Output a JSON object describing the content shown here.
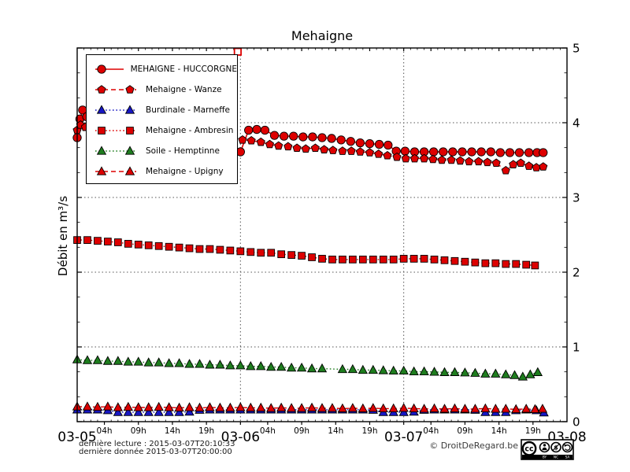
{
  "chart_data": {
    "type": "line",
    "title": "Mehaigne",
    "ylabel": "Débit en m³/s",
    "ylim": [
      0,
      5
    ],
    "xlim_hours": [
      0,
      72
    ],
    "grid": {
      "h_values": [
        1,
        2,
        3,
        4
      ],
      "v_hours": [
        24,
        48
      ]
    },
    "x_day_labels": [
      {
        "t": 0,
        "label": "03-05"
      },
      {
        "t": 24,
        "label": "03-06"
      },
      {
        "t": 48,
        "label": "03-07"
      },
      {
        "t": 72,
        "label": "03-08"
      }
    ],
    "x_hour_labels": [
      {
        "t": 4,
        "label": "04h"
      },
      {
        "t": 9,
        "label": "09h"
      },
      {
        "t": 14,
        "label": "14h"
      },
      {
        "t": 19,
        "label": "19h"
      },
      {
        "t": 28,
        "label": "04h"
      },
      {
        "t": 33,
        "label": "09h"
      },
      {
        "t": 38,
        "label": "14h"
      },
      {
        "t": 43,
        "label": "19h"
      },
      {
        "t": 52,
        "label": "04h"
      },
      {
        "t": 57,
        "label": "09h"
      },
      {
        "t": 62,
        "label": "14h"
      },
      {
        "t": 67,
        "label": "19h"
      }
    ],
    "y_major_ticks": [
      0,
      1,
      2,
      3,
      4,
      5
    ],
    "legend_position": "upper-left",
    "outlier": {
      "t": 23.6,
      "v": 4.95,
      "marker": "square-open",
      "color": "#dd0000"
    },
    "series": [
      {
        "name": "MEHAIGNE - HUCCORGNE",
        "color": "#dd0000",
        "marker": "circle",
        "line": "solid",
        "points": [
          [
            0,
            3.8
          ],
          [
            0.4,
            4.05
          ],
          [
            0.8,
            4.17
          ],
          [
            1.4,
            4.08
          ],
          [
            3,
            4.01
          ],
          [
            4.5,
            3.96
          ],
          [
            6,
            3.92
          ],
          [
            7.5,
            3.89
          ],
          [
            9,
            3.86
          ],
          [
            10.5,
            3.83
          ],
          [
            12,
            3.8
          ],
          [
            13.5,
            3.77
          ],
          [
            15,
            3.74
          ],
          [
            16.5,
            3.71
          ],
          [
            18,
            3.68
          ],
          [
            19.5,
            3.66
          ],
          [
            21,
            3.64
          ],
          [
            22.5,
            3.62
          ],
          [
            24,
            3.61
          ],
          [
            25.2,
            3.9
          ],
          [
            26.4,
            3.91
          ],
          [
            27.6,
            3.9
          ],
          [
            29,
            3.83
          ],
          [
            30.4,
            3.82
          ],
          [
            31.8,
            3.82
          ],
          [
            33.2,
            3.81
          ],
          [
            34.6,
            3.81
          ],
          [
            36,
            3.8
          ],
          [
            37.4,
            3.79
          ],
          [
            38.8,
            3.77
          ],
          [
            40.2,
            3.75
          ],
          [
            41.6,
            3.73
          ],
          [
            43,
            3.72
          ],
          [
            44.4,
            3.71
          ],
          [
            45.7,
            3.7
          ],
          [
            46.9,
            3.62
          ],
          [
            48.2,
            3.62
          ],
          [
            49.6,
            3.61
          ],
          [
            51,
            3.61
          ],
          [
            52.4,
            3.61
          ],
          [
            53.8,
            3.61
          ],
          [
            55.2,
            3.61
          ],
          [
            56.6,
            3.61
          ],
          [
            58,
            3.61
          ],
          [
            59.4,
            3.61
          ],
          [
            60.8,
            3.61
          ],
          [
            62.2,
            3.6
          ],
          [
            63.6,
            3.6
          ],
          [
            65,
            3.6
          ],
          [
            66.4,
            3.6
          ],
          [
            67.6,
            3.6
          ],
          [
            68.5,
            3.6
          ]
        ]
      },
      {
        "name": "Mehaigne - Wanze",
        "color": "#dd0000",
        "marker": "pentagon",
        "line": "dashed",
        "points": [
          [
            0,
            3.9
          ],
          [
            0.5,
            3.97
          ],
          [
            1.2,
            3.94
          ],
          [
            3,
            3.92
          ],
          [
            5,
            3.9
          ],
          [
            7,
            3.88
          ],
          [
            9,
            3.86
          ],
          [
            11,
            3.85
          ],
          [
            13,
            3.83
          ],
          [
            15,
            3.82
          ],
          [
            17,
            3.81
          ],
          [
            19,
            3.8
          ],
          [
            21,
            3.79
          ],
          [
            23,
            3.78
          ],
          [
            24.3,
            3.77
          ],
          [
            25.6,
            3.76
          ],
          [
            27,
            3.74
          ],
          [
            28.3,
            3.71
          ],
          [
            29.6,
            3.69
          ],
          [
            31,
            3.68
          ],
          [
            32.3,
            3.66
          ],
          [
            33.6,
            3.65
          ],
          [
            35,
            3.66
          ],
          [
            36.3,
            3.64
          ],
          [
            37.6,
            3.63
          ],
          [
            39,
            3.62
          ],
          [
            40.3,
            3.62
          ],
          [
            41.6,
            3.61
          ],
          [
            43,
            3.6
          ],
          [
            44.3,
            3.58
          ],
          [
            45.6,
            3.56
          ],
          [
            47,
            3.54
          ],
          [
            48.3,
            3.52
          ],
          [
            49.6,
            3.52
          ],
          [
            51,
            3.52
          ],
          [
            52.3,
            3.51
          ],
          [
            53.6,
            3.5
          ],
          [
            55,
            3.5
          ],
          [
            56.3,
            3.49
          ],
          [
            57.6,
            3.48
          ],
          [
            59,
            3.48
          ],
          [
            60.3,
            3.47
          ],
          [
            61.6,
            3.46
          ],
          [
            63,
            3.36
          ],
          [
            64.1,
            3.44
          ],
          [
            65.2,
            3.46
          ],
          [
            66.4,
            3.42
          ],
          [
            67.5,
            3.4
          ],
          [
            68.5,
            3.41
          ]
        ]
      },
      {
        "name": "Burdinale - Marneffe",
        "color": "#1717c4",
        "marker": "triangle",
        "line": "dotted",
        "points": [
          [
            0,
            0.16
          ],
          [
            1.5,
            0.16
          ],
          [
            3,
            0.16
          ],
          [
            4.5,
            0.15
          ],
          [
            6,
            0.125
          ],
          [
            7.5,
            0.125
          ],
          [
            9,
            0.125
          ],
          [
            10.5,
            0.125
          ],
          [
            12,
            0.125
          ],
          [
            13.5,
            0.125
          ],
          [
            15,
            0.125
          ],
          [
            16.5,
            0.13
          ],
          [
            18,
            0.155
          ],
          [
            19.5,
            0.16
          ],
          [
            21,
            0.16
          ],
          [
            22.5,
            0.16
          ],
          [
            24,
            0.16
          ],
          [
            25.5,
            0.16
          ],
          [
            27,
            0.16
          ],
          [
            28.5,
            0.16
          ],
          [
            30,
            0.16
          ],
          [
            31.5,
            0.16
          ],
          [
            33,
            0.16
          ],
          [
            34.5,
            0.16
          ],
          [
            36,
            0.16
          ],
          [
            37.5,
            0.16
          ],
          [
            39,
            0.16
          ],
          [
            40.5,
            0.16
          ],
          [
            42,
            0.16
          ],
          [
            43.5,
            0.155
          ],
          [
            45,
            0.125
          ],
          [
            46.5,
            0.125
          ],
          [
            48,
            0.125
          ],
          [
            49.5,
            0.13
          ],
          [
            51,
            0.155
          ],
          [
            52.5,
            0.16
          ],
          [
            54,
            0.16
          ],
          [
            55.5,
            0.16
          ],
          [
            57,
            0.16
          ],
          [
            58.5,
            0.155
          ],
          [
            60,
            0.125
          ],
          [
            61.5,
            0.125
          ],
          [
            63,
            0.125
          ],
          [
            64.5,
            0.15
          ],
          [
            66,
            0.16
          ],
          [
            67.5,
            0.15
          ],
          [
            68.6,
            0.12
          ]
        ]
      },
      {
        "name": "Mehaigne - Ambresin",
        "color": "#dd0000",
        "marker": "square",
        "line": "dotted",
        "points": [
          [
            0,
            2.43
          ],
          [
            1.5,
            2.43
          ],
          [
            3,
            2.42
          ],
          [
            4.5,
            2.41
          ],
          [
            6,
            2.4
          ],
          [
            7.5,
            2.38
          ],
          [
            9,
            2.37
          ],
          [
            10.5,
            2.36
          ],
          [
            12,
            2.35
          ],
          [
            13.5,
            2.34
          ],
          [
            15,
            2.33
          ],
          [
            16.5,
            2.32
          ],
          [
            18,
            2.31
          ],
          [
            19.5,
            2.31
          ],
          [
            21,
            2.3
          ],
          [
            22.5,
            2.29
          ],
          [
            24,
            2.28
          ],
          [
            25.5,
            2.27
          ],
          [
            27,
            2.26
          ],
          [
            28.5,
            2.26
          ],
          [
            30,
            2.24
          ],
          [
            31.5,
            2.23
          ],
          [
            33,
            2.22
          ],
          [
            34.5,
            2.2
          ],
          [
            36,
            2.18
          ],
          [
            37.5,
            2.17
          ],
          [
            39,
            2.17
          ],
          [
            40.5,
            2.17
          ],
          [
            42,
            2.17
          ],
          [
            43.5,
            2.17
          ],
          [
            45,
            2.17
          ],
          [
            46.5,
            2.17
          ],
          [
            48,
            2.18
          ],
          [
            49.5,
            2.18
          ],
          [
            51,
            2.18
          ],
          [
            52.5,
            2.17
          ],
          [
            54,
            2.16
          ],
          [
            55.5,
            2.15
          ],
          [
            57,
            2.14
          ],
          [
            58.5,
            2.13
          ],
          [
            60,
            2.12
          ],
          [
            61.5,
            2.12
          ],
          [
            63,
            2.11
          ],
          [
            64.5,
            2.11
          ],
          [
            66,
            2.1
          ],
          [
            67.3,
            2.09
          ]
        ]
      },
      {
        "name": "Soile - Hemptinne",
        "color": "#1e7d1e",
        "marker": "triangle",
        "line": "dotted",
        "points": [
          [
            0,
            0.83
          ],
          [
            1.5,
            0.82
          ],
          [
            3,
            0.82
          ],
          [
            4.5,
            0.81
          ],
          [
            6,
            0.81
          ],
          [
            7.5,
            0.8
          ],
          [
            9,
            0.8
          ],
          [
            10.5,
            0.79
          ],
          [
            12,
            0.79
          ],
          [
            13.5,
            0.78
          ],
          [
            15,
            0.78
          ],
          [
            16.5,
            0.77
          ],
          [
            18,
            0.77
          ],
          [
            19.5,
            0.76
          ],
          [
            21,
            0.76
          ],
          [
            22.5,
            0.75
          ],
          [
            24,
            0.75
          ],
          [
            25.5,
            0.74
          ],
          [
            27,
            0.74
          ],
          [
            28.5,
            0.73
          ],
          [
            30,
            0.73
          ],
          [
            31.5,
            0.72
          ],
          [
            33,
            0.72
          ],
          [
            34.5,
            0.71
          ],
          [
            36,
            0.71
          ],
          [
            39,
            0.7
          ],
          [
            40.5,
            0.7
          ],
          [
            42,
            0.69
          ],
          [
            43.5,
            0.69
          ],
          [
            45,
            0.685
          ],
          [
            46.5,
            0.68
          ],
          [
            48,
            0.68
          ],
          [
            49.5,
            0.67
          ],
          [
            51,
            0.67
          ],
          [
            52.5,
            0.665
          ],
          [
            54,
            0.66
          ],
          [
            55.5,
            0.66
          ],
          [
            57,
            0.655
          ],
          [
            58.5,
            0.65
          ],
          [
            60,
            0.64
          ],
          [
            61.5,
            0.64
          ],
          [
            63,
            0.63
          ],
          [
            64.3,
            0.62
          ],
          [
            65.5,
            0.6
          ],
          [
            66.6,
            0.63
          ],
          [
            67.7,
            0.66
          ]
        ]
      },
      {
        "name": "Mehaigne - Upigny",
        "color": "#dd0000",
        "marker": "triangle",
        "line": "dashed",
        "points": [
          [
            0,
            0.2
          ],
          [
            1.5,
            0.2
          ],
          [
            3,
            0.195
          ],
          [
            4.5,
            0.2
          ],
          [
            6,
            0.19
          ],
          [
            7.5,
            0.195
          ],
          [
            9,
            0.19
          ],
          [
            10.5,
            0.19
          ],
          [
            12,
            0.195
          ],
          [
            13.5,
            0.19
          ],
          [
            15,
            0.185
          ],
          [
            16.5,
            0.19
          ],
          [
            18,
            0.185
          ],
          [
            19.5,
            0.19
          ],
          [
            21,
            0.185
          ],
          [
            22.5,
            0.185
          ],
          [
            24,
            0.19
          ],
          [
            25.5,
            0.185
          ],
          [
            27,
            0.185
          ],
          [
            28.5,
            0.18
          ],
          [
            30,
            0.185
          ],
          [
            31.5,
            0.18
          ],
          [
            33,
            0.18
          ],
          [
            34.5,
            0.185
          ],
          [
            36,
            0.18
          ],
          [
            37.5,
            0.18
          ],
          [
            39,
            0.175
          ],
          [
            40.5,
            0.18
          ],
          [
            42,
            0.175
          ],
          [
            43.5,
            0.18
          ],
          [
            45,
            0.175
          ],
          [
            46.5,
            0.175
          ],
          [
            48,
            0.18
          ],
          [
            49.5,
            0.175
          ],
          [
            51,
            0.17
          ],
          [
            52.5,
            0.175
          ],
          [
            54,
            0.17
          ],
          [
            55.5,
            0.175
          ],
          [
            57,
            0.17
          ],
          [
            58.5,
            0.17
          ],
          [
            60,
            0.175
          ],
          [
            61.5,
            0.17
          ],
          [
            63,
            0.17
          ],
          [
            64.5,
            0.165
          ],
          [
            66,
            0.17
          ],
          [
            67.3,
            0.165
          ],
          [
            68.4,
            0.17
          ]
        ]
      }
    ]
  },
  "footer": {
    "last_read": "dernière lecture : 2015-03-07T20:10:33",
    "last_data": "dernière donnée  2015-03-07T20:00:00",
    "copyright": "© DroitDeRegard.be",
    "cc": {
      "logo": "cc",
      "items": [
        "BY",
        "NC",
        "SA"
      ]
    }
  }
}
